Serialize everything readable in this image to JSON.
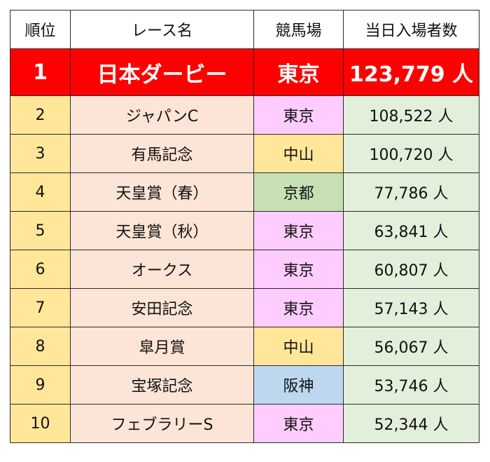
{
  "header": {
    "rank": "順位",
    "race": "レース名",
    "venue": "競馬場",
    "attendance": "当日入場者数"
  },
  "colors": {
    "top_row": "#ff0000",
    "rank_col": "#ffe699",
    "race_col": "#fce4d6",
    "attendance_col": "#e2efda",
    "venue_tokyo": "#ffccff",
    "venue_nakayama": "#ffe699",
    "venue_kyoto": "#c6e0b4",
    "venue_hanshin": "#bdd7ee"
  },
  "rows": [
    {
      "rank": "1",
      "race": "日本ダービー",
      "venue": "東京",
      "attendance": "123,779 人"
    },
    {
      "rank": "2",
      "race": "ジャパンC",
      "venue": "東京",
      "attendance": "108,522 人"
    },
    {
      "rank": "3",
      "race": "有馬記念",
      "venue": "中山",
      "attendance": "100,720 人"
    },
    {
      "rank": "4",
      "race": "天皇賞（春）",
      "venue": "京都",
      "attendance": "77,786 人"
    },
    {
      "rank": "5",
      "race": "天皇賞（秋）",
      "venue": "東京",
      "attendance": "63,841 人"
    },
    {
      "rank": "6",
      "race": "オークス",
      "venue": "東京",
      "attendance": "60,807 人"
    },
    {
      "rank": "7",
      "race": "安田記念",
      "venue": "東京",
      "attendance": "57,143 人"
    },
    {
      "rank": "8",
      "race": "皐月賞",
      "venue": "中山",
      "attendance": "56,067 人"
    },
    {
      "rank": "9",
      "race": "宝塚記念",
      "venue": "阪神",
      "attendance": "53,746 人"
    },
    {
      "rank": "10",
      "race": "フェブラリーS",
      "venue": "東京",
      "attendance": "52,344 人"
    }
  ]
}
